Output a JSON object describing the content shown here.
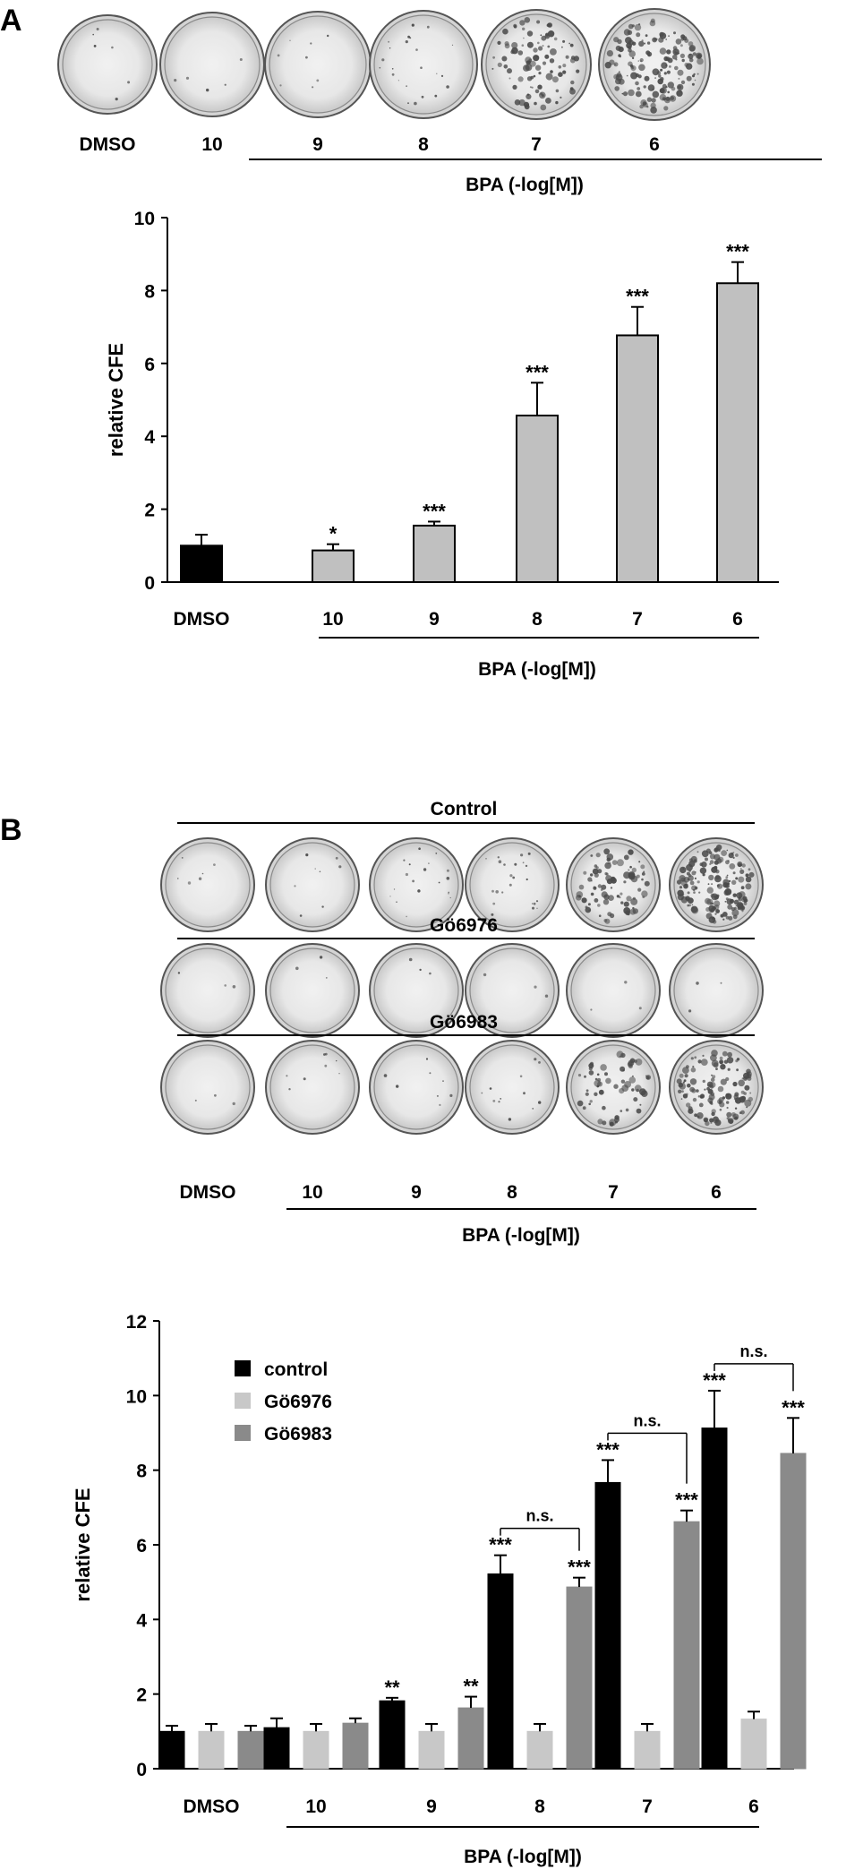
{
  "panel_a": {
    "letter": "A",
    "plate_labels": [
      "DMSO",
      "10",
      "9",
      "8",
      "7",
      "6"
    ],
    "plate_colony_density": [
      0.02,
      0.01,
      0.03,
      0.12,
      0.55,
      0.9
    ],
    "group_label": "BPA (-log[M])"
  },
  "panel_b": {
    "letter": "B",
    "row_titles": [
      "Control",
      "Gö6976",
      "Gö6983"
    ],
    "plate_labels": [
      "DMSO",
      "10",
      "9",
      "8",
      "7",
      "6"
    ],
    "plate_colony_density": [
      [
        0.02,
        0.03,
        0.1,
        0.12,
        0.5,
        0.95
      ],
      [
        0.0,
        0.0,
        0.0,
        0.0,
        0.0,
        0.0
      ],
      [
        0.0,
        0.03,
        0.03,
        0.05,
        0.35,
        0.75
      ]
    ],
    "group_label": "BPA (-log[M])"
  },
  "chart_data": [
    {
      "type": "bar",
      "categories": [
        "DMSO",
        "10",
        "9",
        "8",
        "7",
        "6"
      ],
      "values": [
        1.0,
        0.87,
        1.55,
        4.57,
        6.77,
        8.2
      ],
      "errors": [
        0.3,
        0.17,
        0.11,
        0.9,
        0.78,
        0.58
      ],
      "significance": [
        "",
        "*",
        "***",
        "***",
        "***",
        "***"
      ],
      "bar_colors": [
        "#000000",
        "#c0c0c0",
        "#c0c0c0",
        "#c0c0c0",
        "#c0c0c0",
        "#c0c0c0"
      ],
      "ylabel": "relative CFE",
      "xlabel": "BPA (-log[M])",
      "ylim": [
        0,
        10
      ],
      "yticks": [
        "0",
        "2",
        "4",
        "6",
        "8",
        "10"
      ]
    },
    {
      "type": "bar",
      "categories": [
        "DMSO",
        "10",
        "9",
        "8",
        "7",
        "6"
      ],
      "series": [
        {
          "name": "control",
          "color": "#000000",
          "values": [
            1.0,
            1.1,
            1.82,
            5.22,
            7.67,
            9.13
          ],
          "errors": [
            0.15,
            0.25,
            0.08,
            0.5,
            0.6,
            1.0
          ],
          "significance": [
            "",
            "",
            "**",
            "***",
            "***",
            "***"
          ]
        },
        {
          "name": "Gö6976",
          "color": "#c8c8c8",
          "values": [
            1.0,
            1.0,
            1.0,
            1.0,
            1.0,
            1.33
          ],
          "errors": [
            0.2,
            0.2,
            0.2,
            0.2,
            0.2,
            0.2
          ],
          "significance": [
            "",
            "",
            "",
            "",
            "",
            ""
          ]
        },
        {
          "name": "Gö6983",
          "color": "#8a8a8a",
          "values": [
            1.0,
            1.22,
            1.63,
            4.87,
            6.62,
            8.45
          ],
          "errors": [
            0.15,
            0.13,
            0.3,
            0.25,
            0.3,
            0.95
          ],
          "significance": [
            "",
            "",
            "**",
            "***",
            "***",
            "***"
          ]
        }
      ],
      "comparisons": [
        {
          "category": "8",
          "label": "n.s."
        },
        {
          "category": "7",
          "label": "n.s."
        },
        {
          "category": "6",
          "label": "n.s."
        }
      ],
      "ylabel": "relative CFE",
      "xlabel": "BPA (-log[M])",
      "ylim": [
        0,
        12
      ],
      "yticks": [
        "0",
        "2",
        "4",
        "6",
        "8",
        "10",
        "12"
      ],
      "legend_position": "top-left"
    }
  ]
}
